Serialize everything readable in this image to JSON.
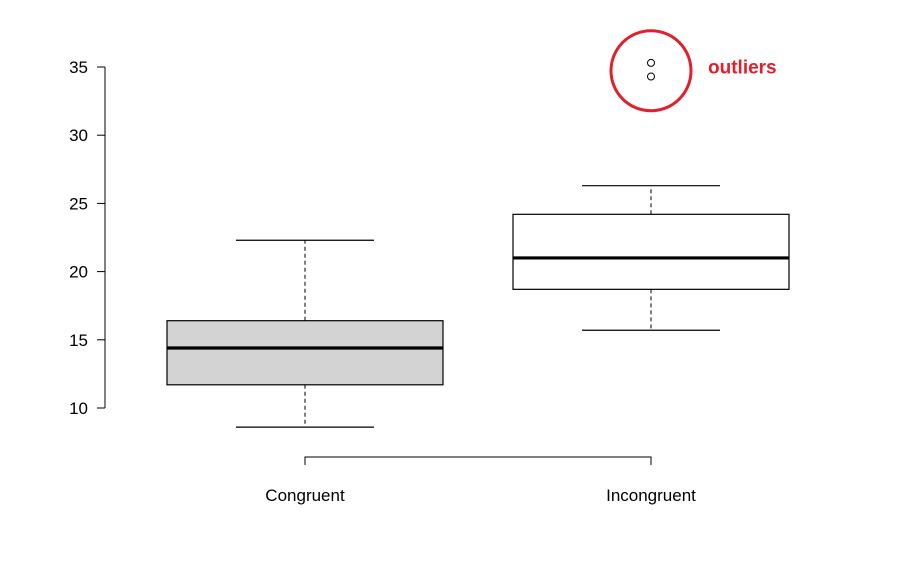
{
  "chart_data": {
    "type": "box",
    "categories": [
      "Congruent",
      "Incongruent"
    ],
    "boxes": [
      {
        "category": "Congruent",
        "whisker_low": 8.6,
        "q1": 11.7,
        "median": 14.4,
        "q3": 16.4,
        "whisker_high": 22.3,
        "outliers": [],
        "fill": "#d3d3d3"
      },
      {
        "category": "Incongruent",
        "whisker_low": 15.7,
        "q1": 18.7,
        "median": 21.0,
        "q3": 24.2,
        "whisker_high": 26.3,
        "outliers": [
          34.3,
          35.3
        ],
        "fill": "#ffffff"
      }
    ],
    "y_ticks": [
      10,
      15,
      20,
      25,
      30,
      35
    ],
    "ylim": [
      10,
      35
    ],
    "grid": false,
    "annotation": {
      "text": "outliers",
      "color": "#e0202a",
      "target": "Incongruent"
    }
  }
}
